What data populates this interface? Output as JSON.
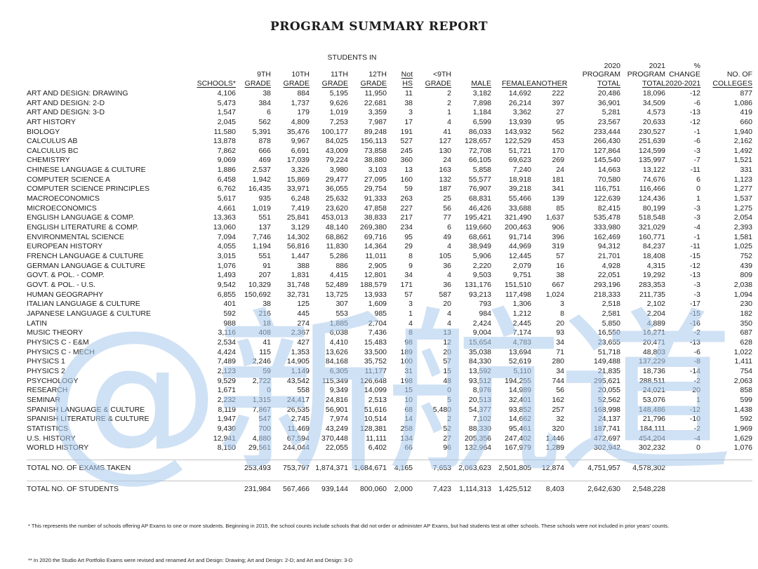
{
  "title": "PROGRAM SUMMARY REPORT",
  "students_in_label": "STUDENTS IN",
  "watermark": "@新航道",
  "colors": {
    "watermark_blue": "#a9c9ec"
  },
  "table": {
    "columns": [
      {
        "key": "subject",
        "lines": [
          ""
        ],
        "underline_last": false
      },
      {
        "key": "schools",
        "lines": [
          "SCHOOLS*"
        ],
        "underline_last": true
      },
      {
        "key": "grade9",
        "lines": [
          "9TH",
          "GRADE"
        ],
        "underline_last": true
      },
      {
        "key": "grade10",
        "lines": [
          "10TH",
          "GRADE"
        ],
        "underline_last": true
      },
      {
        "key": "grade11",
        "lines": [
          "11TH",
          "GRADE"
        ],
        "underline_last": true
      },
      {
        "key": "grade12",
        "lines": [
          "12TH",
          "GRADE"
        ],
        "underline_last": true
      },
      {
        "key": "not-hs",
        "lines": [
          "Not",
          "HS"
        ],
        "underline_all": true
      },
      {
        "key": "lt-9th",
        "lines": [
          "<9TH",
          "GRADE"
        ],
        "underline_last": true
      },
      {
        "key": "male",
        "lines": [
          "MALE"
        ],
        "underline_last": true
      },
      {
        "key": "female",
        "lines": [
          "FEMALE"
        ],
        "underline_last": true
      },
      {
        "key": "another",
        "lines": [
          "ANOTHER"
        ],
        "underline_last": true
      },
      {
        "key": "total-2020",
        "lines": [
          "2020",
          "PROGRAM",
          "TOTAL"
        ],
        "underline_last": true
      },
      {
        "key": "total-2021",
        "lines": [
          "2021",
          "PROGRAM",
          "TOTAL"
        ],
        "underline_last": true
      },
      {
        "key": "pct-change",
        "lines": [
          "%",
          "CHANGE",
          "2020-2021"
        ],
        "underline_last": true
      },
      {
        "key": "colleges",
        "lines": [
          "NO. OF",
          "COLLEGES"
        ],
        "underline_last": true
      }
    ],
    "rows": [
      {
        "subject": "ART AND DESIGN: DRAWING",
        "values": [
          "4,106",
          "38",
          "884",
          "5,195",
          "11,950",
          "11",
          "2",
          "3,182",
          "14,692",
          "222",
          "20,486",
          "18,096",
          "-12",
          "877"
        ]
      },
      {
        "subject": "ART AND DESIGN: 2-D",
        "values": [
          "5,473",
          "384",
          "1,737",
          "9,626",
          "22,681",
          "38",
          "2",
          "7,898",
          "26,214",
          "397",
          "36,901",
          "34,509",
          "-6",
          "1,086"
        ]
      },
      {
        "subject": "ART AND DESIGN: 3-D",
        "values": [
          "1,547",
          "6",
          "179",
          "1,019",
          "3,359",
          "3",
          "1",
          "1,184",
          "3,362",
          "27",
          "5,281",
          "4,573",
          "-13",
          "419"
        ]
      },
      {
        "subject": "ART HISTORY",
        "values": [
          "2,045",
          "562",
          "4,809",
          "7,253",
          "7,987",
          "17",
          "4",
          "6,599",
          "13,939",
          "95",
          "23,567",
          "20,633",
          "-12",
          "660"
        ]
      },
      {
        "subject": "BIOLOGY",
        "values": [
          "11,580",
          "5,391",
          "35,476",
          "100,177",
          "89,248",
          "191",
          "41",
          "86,033",
          "143,932",
          "562",
          "233,444",
          "230,527",
          "-1",
          "1,940"
        ]
      },
      {
        "subject": "CALCULUS AB",
        "values": [
          "13,878",
          "878",
          "9,967",
          "84,025",
          "156,113",
          "527",
          "127",
          "128,657",
          "122,529",
          "453",
          "266,430",
          "251,639",
          "-6",
          "2,162"
        ]
      },
      {
        "subject": "CALCULUS BC",
        "values": [
          "7,862",
          "666",
          "6,691",
          "43,009",
          "73,858",
          "245",
          "130",
          "72,708",
          "51,721",
          "170",
          "127,864",
          "124,599",
          "-3",
          "1,492"
        ]
      },
      {
        "subject": "CHEMISTRY",
        "values": [
          "9,069",
          "469",
          "17,039",
          "79,224",
          "38,880",
          "360",
          "24",
          "66,105",
          "69,623",
          "269",
          "145,540",
          "135,997",
          "-7",
          "1,521"
        ]
      },
      {
        "subject": "CHINESE LANGUAGE & CULTURE",
        "values": [
          "1,886",
          "2,537",
          "3,326",
          "3,980",
          "3,103",
          "13",
          "163",
          "5,858",
          "7,240",
          "24",
          "14,663",
          "13,122",
          "-11",
          "331"
        ]
      },
      {
        "subject": "COMPUTER SCIENCE A",
        "values": [
          "6,458",
          "1,942",
          "15,869",
          "29,477",
          "27,095",
          "160",
          "132",
          "55,577",
          "18,918",
          "181",
          "70,580",
          "74,676",
          "6",
          "1,123"
        ]
      },
      {
        "subject": "COMPUTER SCIENCE PRINCIPLES",
        "values": [
          "6,762",
          "16,435",
          "33,971",
          "36,055",
          "29,754",
          "59",
          "187",
          "76,907",
          "39,218",
          "341",
          "116,751",
          "116,466",
          "0",
          "1,277"
        ]
      },
      {
        "subject": "MACROECONOMICS",
        "values": [
          "5,617",
          "935",
          "6,248",
          "25,632",
          "91,333",
          "263",
          "25",
          "68,831",
          "55,466",
          "139",
          "122,639",
          "124,436",
          "1",
          "1,537"
        ]
      },
      {
        "subject": "MICROECONOMICS",
        "values": [
          "4,661",
          "1,019",
          "7,419",
          "23,620",
          "47,858",
          "227",
          "56",
          "46,426",
          "33,688",
          "85",
          "82,415",
          "80,199",
          "-3",
          "1,275"
        ]
      },
      {
        "subject": "ENGLISH LANGUAGE & COMP.",
        "values": [
          "13,363",
          "551",
          "25,841",
          "453,013",
          "38,833",
          "217",
          "77",
          "195,421",
          "321,490",
          "1,637",
          "535,478",
          "518,548",
          "-3",
          "2,054"
        ]
      },
      {
        "subject": "ENGLISH LITERATURE & COMP.",
        "values": [
          "13,060",
          "137",
          "3,129",
          "48,140",
          "269,380",
          "234",
          "6",
          "119,660",
          "200,463",
          "906",
          "333,980",
          "321,029",
          "-4",
          "2,393"
        ]
      },
      {
        "subject": "ENVIRONMENTAL SCIENCE",
        "values": [
          "7,094",
          "7,746",
          "14,302",
          "68,862",
          "69,716",
          "95",
          "49",
          "68,661",
          "91,714",
          "396",
          "162,469",
          "160,771",
          "-1",
          "1,581"
        ]
      },
      {
        "subject": "EUROPEAN HISTORY",
        "values": [
          "4,055",
          "1,194",
          "56,816",
          "11,830",
          "14,364",
          "29",
          "4",
          "38,949",
          "44,969",
          "319",
          "94,312",
          "84,237",
          "-11",
          "1,025"
        ]
      },
      {
        "subject": "FRENCH LANGUAGE & CULTURE",
        "values": [
          "3,015",
          "551",
          "1,447",
          "5,286",
          "11,011",
          "8",
          "105",
          "5,906",
          "12,445",
          "57",
          "21,701",
          "18,408",
          "-15",
          "752"
        ]
      },
      {
        "subject": "GERMAN LANGUAGE & CULTURE",
        "values": [
          "1,076",
          "91",
          "388",
          "886",
          "2,905",
          "9",
          "36",
          "2,220",
          "2,079",
          "16",
          "4,928",
          "4,315",
          "-12",
          "439"
        ]
      },
      {
        "subject": "GOVT. & POL. - COMP.",
        "values": [
          "1,493",
          "207",
          "1,831",
          "4,415",
          "12,801",
          "34",
          "4",
          "9,503",
          "9,751",
          "38",
          "22,051",
          "19,292",
          "-13",
          "809"
        ]
      },
      {
        "subject": "GOVT. & POL. - U.S.",
        "values": [
          "9,542",
          "10,329",
          "31,748",
          "52,489",
          "188,579",
          "171",
          "36",
          "131,176",
          "151,510",
          "667",
          "293,196",
          "283,353",
          "-3",
          "2,038"
        ]
      },
      {
        "subject": "HUMAN GEOGRAPHY",
        "values": [
          "6,855",
          "150,692",
          "32,731",
          "13,725",
          "13,933",
          "57",
          "587",
          "93,213",
          "117,498",
          "1,024",
          "218,333",
          "211,735",
          "-3",
          "1,094"
        ]
      },
      {
        "subject": "ITALIAN LANGUAGE & CULTURE",
        "values": [
          "401",
          "38",
          "125",
          "307",
          "1,609",
          "3",
          "20",
          "793",
          "1,306",
          "3",
          "2,518",
          "2,102",
          "-17",
          "230"
        ]
      },
      {
        "subject": "JAPANESE LANGUAGE & CULTURE",
        "values": [
          "592",
          "216",
          "445",
          "553",
          "985",
          "1",
          "4",
          "984",
          "1,212",
          "8",
          "2,581",
          "2,204",
          "-15",
          "182"
        ]
      },
      {
        "subject": "LATIN",
        "values": [
          "988",
          "18",
          "274",
          "1,885",
          "2,704",
          "4",
          "4",
          "2,424",
          "2,445",
          "20",
          "5,850",
          "4,889",
          "-16",
          "350"
        ]
      },
      {
        "subject": "MUSIC THEORY",
        "values": [
          "3,116",
          "408",
          "2,367",
          "6,038",
          "7,436",
          "8",
          "13",
          "9,004",
          "7,174",
          "93",
          "16,550",
          "16,271",
          "-2",
          "687"
        ]
      },
      {
        "subject": "PHYSICS C - E&M",
        "values": [
          "2,534",
          "41",
          "427",
          "4,410",
          "15,483",
          "98",
          "12",
          "15,654",
          "4,783",
          "34",
          "23,655",
          "20,471",
          "-13",
          "628"
        ]
      },
      {
        "subject": "PHYSICS C - MECH",
        "values": [
          "4,424",
          "115",
          "1,353",
          "13,626",
          "33,500",
          "189",
          "20",
          "35,038",
          "13,694",
          "71",
          "51,718",
          "48,803",
          "-6",
          "1,022"
        ]
      },
      {
        "subject": "PHYSICS 1",
        "values": [
          "7,489",
          "2,246",
          "14,905",
          "84,168",
          "35,752",
          "100",
          "57",
          "84,330",
          "52,619",
          "280",
          "149,488",
          "137,229",
          "-8",
          "1,411"
        ]
      },
      {
        "subject": "PHYSICS 2",
        "values": [
          "2,123",
          "59",
          "1,149",
          "6,305",
          "11,177",
          "31",
          "15",
          "13,592",
          "5,110",
          "34",
          "21,835",
          "18,736",
          "-14",
          "754"
        ]
      },
      {
        "subject": "PSYCHOLOGY",
        "values": [
          "9,529",
          "2,722",
          "43,542",
          "115,349",
          "126,648",
          "198",
          "48",
          "93,512",
          "194,255",
          "744",
          "295,621",
          "288,511",
          "-2",
          "2,063"
        ]
      },
      {
        "subject": "RESEARCH",
        "values": [
          "1,671",
          "0",
          "558",
          "9,349",
          "14,099",
          "15",
          "0",
          "8,976",
          "14,989",
          "56",
          "20,055",
          "24,021",
          "20",
          "858"
        ]
      },
      {
        "subject": "SEMINAR",
        "values": [
          "2,232",
          "1,315",
          "24,417",
          "24,816",
          "2,513",
          "10",
          "5",
          "20,513",
          "32,401",
          "162",
          "52,562",
          "53,076",
          "1",
          "599"
        ]
      },
      {
        "subject": "SPANISH LANGUAGE & CULTURE",
        "values": [
          "8,119",
          "7,867",
          "26,535",
          "56,901",
          "51,616",
          "68",
          "5,480",
          "54,377",
          "93,852",
          "257",
          "168,998",
          "148,486",
          "-12",
          "1,438"
        ]
      },
      {
        "subject": "SPANISH LITERATURE & CULTURE",
        "values": [
          "1,947",
          "547",
          "2,745",
          "7,974",
          "10,514",
          "14",
          "2",
          "7,102",
          "14,662",
          "32",
          "24,137",
          "21,796",
          "-10",
          "592"
        ]
      },
      {
        "subject": "STATISTICS",
        "values": [
          "9,430",
          "700",
          "11,469",
          "43,249",
          "128,381",
          "258",
          "52",
          "88,330",
          "95,461",
          "320",
          "187,741",
          "184,111",
          "-2",
          "1,969"
        ]
      },
      {
        "subject": "U.S. HISTORY",
        "values": [
          "12,941",
          "4,880",
          "67,594",
          "370,448",
          "11,111",
          "134",
          "27",
          "205,356",
          "247,402",
          "1,446",
          "472,697",
          "454,204",
          "-4",
          "1,629"
        ]
      },
      {
        "subject": "WORLD HISTORY",
        "values": [
          "8,150",
          "29,561",
          "244,044",
          "22,055",
          "6,402",
          "66",
          "96",
          "132,964",
          "167,979",
          "1,289",
          "302,942",
          "302,232",
          "0",
          "1,076"
        ]
      }
    ],
    "totals": [
      {
        "label": "TOTAL NO. OF EXAMS TAKEN",
        "values": [
          "",
          "253,493",
          "753,797",
          "1,874,371",
          "1,684,671",
          "4,165",
          "7,653",
          "2,063,623",
          "2,501,805",
          "12,874",
          "4,751,957",
          "4,578,302",
          "",
          ""
        ]
      },
      {
        "label": "TOTAL NO. OF STUDENTS",
        "values": [
          "",
          "231,984",
          "567,466",
          "939,144",
          "800,060",
          "2,000",
          "7,423",
          "1,114,313",
          "1,425,512",
          "8,403",
          "2,642,630",
          "2,548,228",
          "",
          ""
        ]
      }
    ]
  },
  "footnotes": [
    "* This represents the number of schools offering AP Exams to one or more students. Beginning in 2015, the school counts include schools that did not order or administer AP Exams, but had students test at other schools. These schools were not included in prior years' counts.",
    "** In 2020 the Studio Art Portfolio Exams were revised and renamed Art and Design: Drawing; Art and Design: 2-D; and Art and Design: 3-D"
  ]
}
